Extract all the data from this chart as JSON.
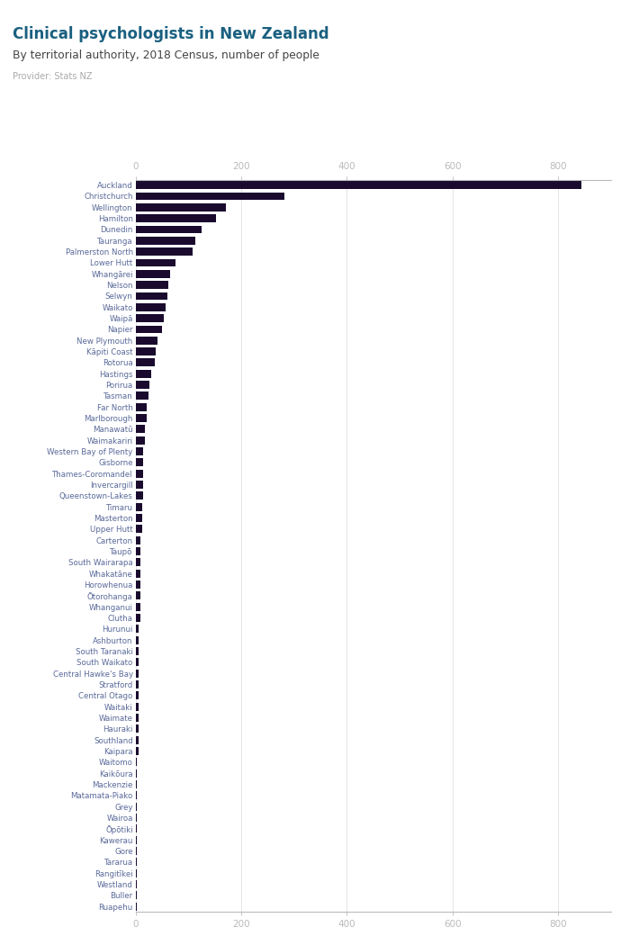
{
  "title": "Clinical psychologists in New Zealand",
  "subtitle": "By territorial authority, 2018 Census, number of people",
  "provider": "Provider: Stats NZ",
  "bar_color": "#1a0a2e",
  "label_color": "#5a6a9a",
  "title_color": "#1a6080",
  "subtitle_color": "#444444",
  "provider_color": "#aaaaaa",
  "bg_color": "#ffffff",
  "grid_color": "#e0e0e0",
  "axis_color": "#bbbbbb",
  "figurenz_bg": "#4455bb",
  "figurenz_text": "#ffffff",
  "xlim": [
    0,
    900
  ],
  "xticks": [
    0,
    200,
    400,
    600,
    800
  ],
  "categories": [
    "Auckland",
    "Christchurch",
    "Wellington",
    "Hamilton",
    "Dunedin",
    "Tauranga",
    "Palmerston North",
    "Lower Hutt",
    "Whangārei",
    "Nelson",
    "Selwyn",
    "Waikato",
    "Waipā",
    "Napier",
    "New Plymouth",
    "Kāpiti Coast",
    "Rotorua",
    "Hastings",
    "Porirua",
    "Tasman",
    "Far North",
    "Marlborough",
    "Manawatū",
    "Waimakariri",
    "Western Bay of Plenty",
    "Gisborne",
    "Thames-Coromandel",
    "Invercargill",
    "Queenstown-Lakes",
    "Timaru",
    "Masterton",
    "Upper Hutt",
    "Carterton",
    "Taupō",
    "South Wairarapa",
    "Whakatāne",
    "Horowhenua",
    "Ōtorohanga",
    "Whanganui",
    "Clutha",
    "Hurunui",
    "Ashburton",
    "South Taranaki",
    "South Waikato",
    "Central Hawke's Bay",
    "Stratford",
    "Central Otago",
    "Waitaki",
    "Waimate",
    "Hauraki",
    "Southland",
    "Kaipara",
    "Waitomo",
    "Kaikōura",
    "Mackenzie",
    "Matamata-Piako",
    "Grey",
    "Wairoa",
    "Ōpōtiki",
    "Kawerau",
    "Gore",
    "Tararua",
    "Rangitīkei",
    "Westland",
    "Buller",
    "Ruapehu"
  ],
  "values": [
    843,
    282,
    171,
    153,
    126,
    114,
    108,
    75,
    66,
    63,
    60,
    57,
    54,
    51,
    42,
    39,
    36,
    30,
    27,
    24,
    21,
    21,
    18,
    18,
    15,
    15,
    15,
    15,
    15,
    12,
    12,
    12,
    9,
    9,
    9,
    9,
    9,
    9,
    9,
    9,
    6,
    6,
    6,
    6,
    6,
    6,
    6,
    6,
    6,
    6,
    6,
    6,
    3,
    3,
    3,
    3,
    3,
    3,
    3,
    3,
    3,
    3,
    3,
    3,
    3,
    3
  ]
}
